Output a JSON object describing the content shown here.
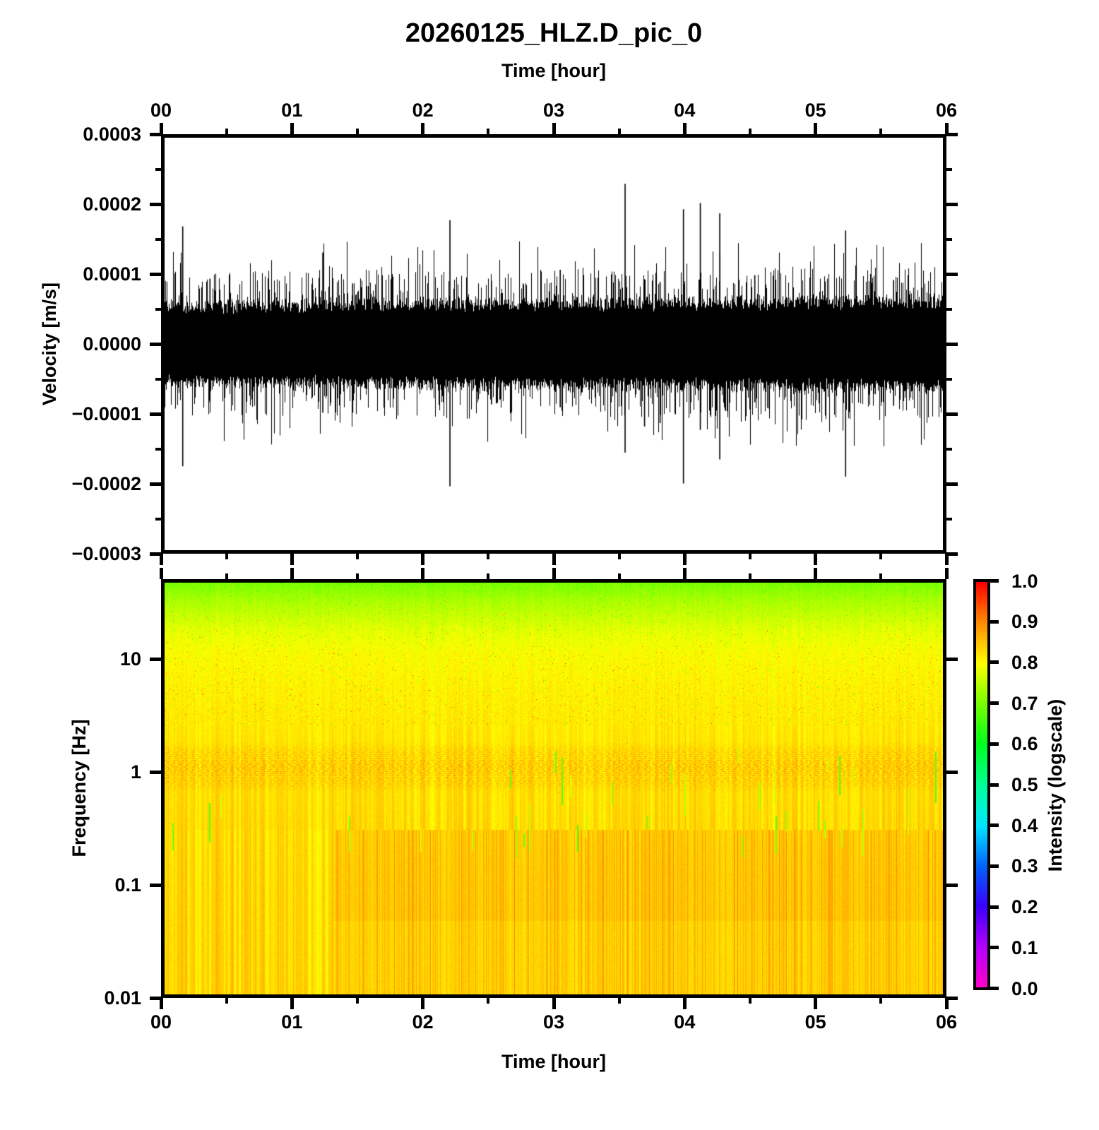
{
  "title": "20260125_HLZ.D_pic_0",
  "waveform": {
    "xlabel": "Time [hour]",
    "ylabel": "Velocity [m/s]",
    "x_tick_labels": [
      "00",
      "01",
      "02",
      "03",
      "04",
      "05",
      "06"
    ],
    "y_tick_labels": [
      "0.0003",
      "0.0002",
      "0.0001",
      "0.0000",
      "−0.0001",
      "−0.0002",
      "−0.0003"
    ]
  },
  "spectrogram": {
    "xlabel": "Time [hour]",
    "ylabel": "Frequency [Hz]",
    "x_tick_labels": [
      "00",
      "01",
      "02",
      "03",
      "04",
      "05",
      "06"
    ],
    "y_tick_labels": [
      "10",
      "1",
      "0.1",
      "0.01"
    ],
    "y_tick_freqs": [
      10,
      1,
      0.1,
      0.01
    ]
  },
  "colorbar": {
    "label": "Intensity (logscale)",
    "tick_labels": [
      "1.0",
      "0.9",
      "0.8",
      "0.7",
      "0.6",
      "0.5",
      "0.4",
      "0.3",
      "0.2",
      "0.1",
      "0.0"
    ],
    "colormap_stops": [
      [
        0.0,
        "#ff00c8"
      ],
      [
        0.1,
        "#b400ff"
      ],
      [
        0.2,
        "#3c00ff"
      ],
      [
        0.3,
        "#0064ff"
      ],
      [
        0.4,
        "#00e6ff"
      ],
      [
        0.5,
        "#00ff96"
      ],
      [
        0.6,
        "#00ff1e"
      ],
      [
        0.7,
        "#78ff00"
      ],
      [
        0.8,
        "#ffff00"
      ],
      [
        0.9,
        "#ff8c00"
      ],
      [
        1.0,
        "#ff0000"
      ]
    ]
  },
  "chart_data": [
    {
      "type": "line",
      "title": "20260125_HLZ.D_pic_0",
      "xlabel": "Time [hour]",
      "ylabel": "Velocity [m/s]",
      "xlim": [
        0,
        6
      ],
      "ylim": [
        -0.0003,
        0.0003
      ],
      "x_ticks": [
        0,
        1,
        2,
        3,
        4,
        5,
        6
      ],
      "y_ticks": [
        0.0003,
        0.0002,
        0.0001,
        0.0,
        -0.0001,
        -0.0002,
        -0.0003
      ],
      "noise_band_halfwidth": 4.5e-05,
      "whisker_typical": 7e-05,
      "spikes": [
        {
          "hour": 0.14,
          "max": 0.000171,
          "min": -0.000178
        },
        {
          "hour": 0.35,
          "max": 9.5e-05,
          "min": -8.5e-05
        },
        {
          "hour": 1.22,
          "max": 0.000133,
          "min": -0.0001
        },
        {
          "hour": 1.45,
          "max": 8.8e-05,
          "min": -0.0001
        },
        {
          "hour": 2.2,
          "max": 0.00018,
          "min": -0.000207
        },
        {
          "hour": 2.52,
          "max": 9.2e-05,
          "min": -8.8e-05
        },
        {
          "hour": 3.05,
          "max": 0.000108,
          "min": -9.2e-05
        },
        {
          "hour": 3.55,
          "max": 0.000233,
          "min": -0.000158
        },
        {
          "hour": 3.7,
          "max": 9.4e-05,
          "min": -0.00012
        },
        {
          "hour": 3.82,
          "max": 9e-05,
          "min": -0.000115
        },
        {
          "hour": 4.0,
          "max": 0.000196,
          "min": -0.000203
        },
        {
          "hour": 4.13,
          "max": 0.000205,
          "min": -0.000125
        },
        {
          "hour": 4.28,
          "max": 0.00019,
          "min": -0.000168
        },
        {
          "hour": 4.55,
          "max": 0.0001,
          "min": -8.5e-05
        },
        {
          "hour": 5.25,
          "max": 0.000165,
          "min": -0.000193
        },
        {
          "hour": 5.62,
          "max": 9.3e-05,
          "min": -9e-05
        }
      ]
    },
    {
      "type": "heatmap",
      "xlabel": "Time [hour]",
      "ylabel": "Frequency [Hz]",
      "xlim": [
        0,
        6
      ],
      "ylim": [
        0.01,
        51
      ],
      "yscale": "log",
      "grid": false,
      "colorbar_label": "Intensity (logscale)",
      "zlim": [
        0,
        1
      ],
      "intensity_vs_freq": [
        [
          51,
          0.7
        ],
        [
          35,
          0.737
        ],
        [
          20,
          0.776
        ],
        [
          12,
          0.799
        ],
        [
          6,
          0.811
        ],
        [
          3,
          0.817
        ],
        [
          1.5,
          0.822
        ],
        [
          0.8,
          0.826
        ],
        [
          0.4,
          0.83
        ],
        [
          0.15,
          0.834
        ],
        [
          0.05,
          0.836
        ],
        [
          0.01,
          0.838
        ]
      ],
      "stripe_transition_hour": 1.3
    }
  ],
  "render_seed": 20260125
}
